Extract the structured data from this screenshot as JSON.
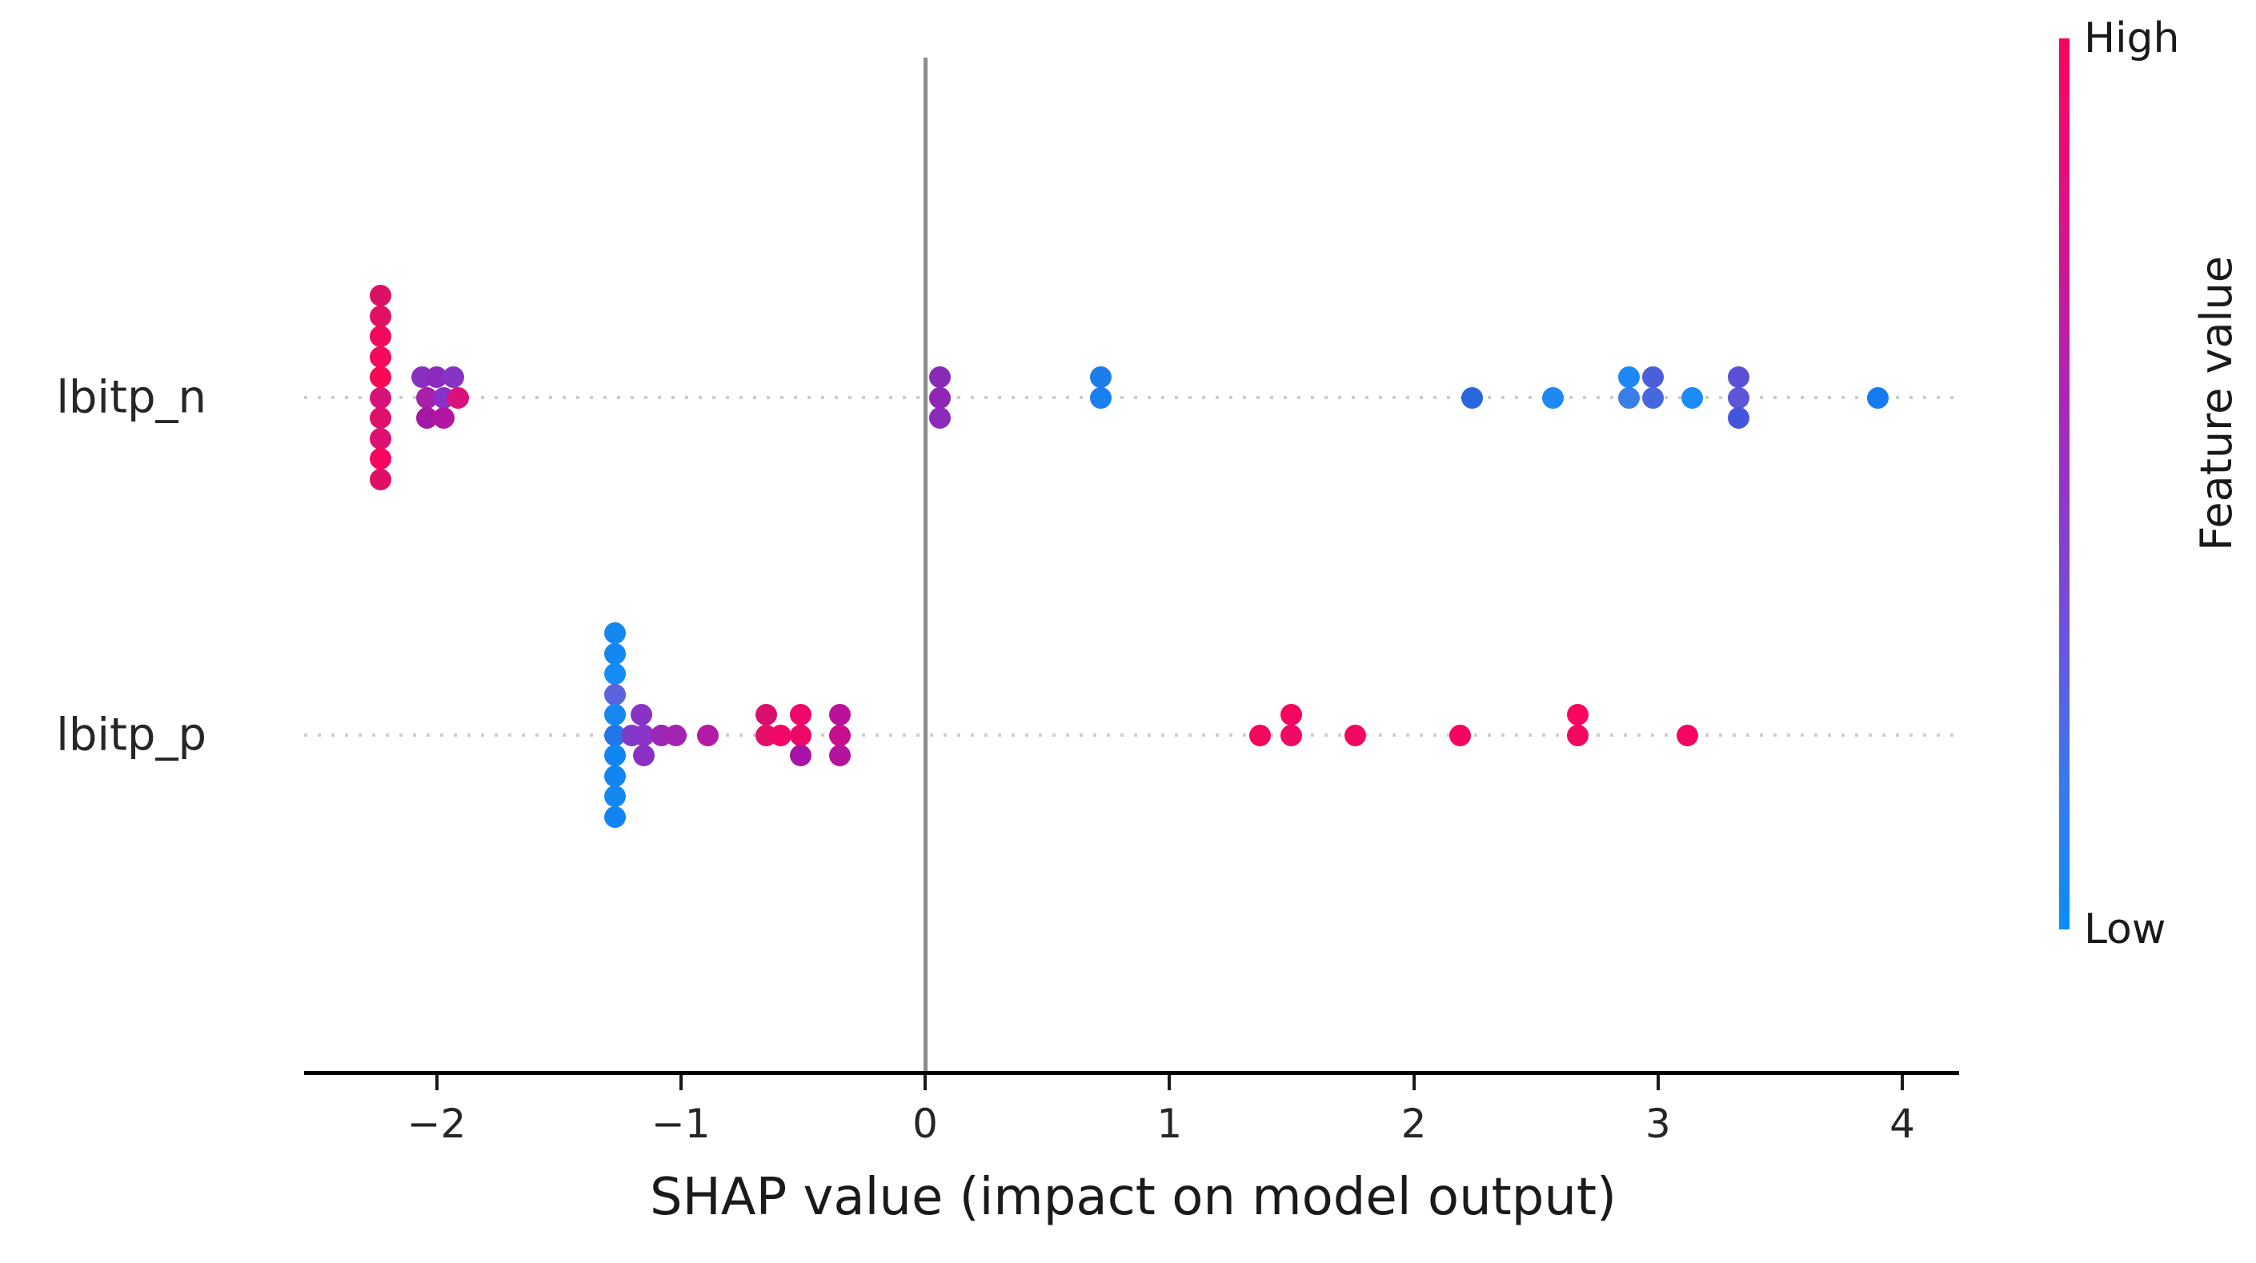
{
  "chart_data": {
    "type": "scatter",
    "variant": "shap-beeswarm-summary",
    "title": "",
    "xlabel": "SHAP value (impact on model output)",
    "ylabel": "",
    "x_ticks": [
      "−2",
      "−1",
      "0",
      "1",
      "2",
      "3",
      "4"
    ],
    "x_tick_values": [
      -2,
      -1,
      0,
      1,
      2,
      3,
      4
    ],
    "xlim": [
      -2.54,
      4.23
    ],
    "grid": "row-dotted-guides",
    "legend_position": "right-colorbar",
    "features": [
      {
        "name": "lbitp_n",
        "points": [
          {
            "x": -2.23,
            "lane": -5,
            "color": "#dc1166"
          },
          {
            "x": -2.23,
            "lane": -4,
            "color": "#e01063"
          },
          {
            "x": -2.23,
            "lane": -3,
            "color": "#f2085c"
          },
          {
            "x": -2.23,
            "lane": -2,
            "color": "#f40a5a"
          },
          {
            "x": -2.23,
            "lane": -1,
            "color": "#fa0755"
          },
          {
            "x": -2.23,
            "lane": 0,
            "color": "#d9127b"
          },
          {
            "x": -2.23,
            "lane": 1,
            "color": "#e00f6b"
          },
          {
            "x": -2.23,
            "lane": 2,
            "color": "#dc1170"
          },
          {
            "x": -2.23,
            "lane": 3,
            "color": "#f9045e"
          },
          {
            "x": -2.23,
            "lane": 4,
            "color": "#df0f68"
          },
          {
            "x": -2.06,
            "lane": -1,
            "color": "#8b2fc0"
          },
          {
            "x": -2.0,
            "lane": -1,
            "color": "#8b2bbe"
          },
          {
            "x": -1.93,
            "lane": -1,
            "color": "#8833c4"
          },
          {
            "x": -2.04,
            "lane": 0,
            "color": "#a81fa8"
          },
          {
            "x": -1.97,
            "lane": 0,
            "color": "#8b30c8"
          },
          {
            "x": -1.91,
            "lane": 0,
            "color": "#d9127b"
          },
          {
            "x": -2.04,
            "lane": 1,
            "color": "#a517a5"
          },
          {
            "x": -1.97,
            "lane": 1,
            "color": "#b315a0"
          },
          {
            "x": 0.06,
            "lane": -1,
            "color": "#8a2bb8"
          },
          {
            "x": 0.06,
            "lane": 0,
            "color": "#9026b4"
          },
          {
            "x": 0.06,
            "lane": 1,
            "color": "#8c2abc"
          },
          {
            "x": 0.72,
            "lane": -1,
            "color": "#1d7deb"
          },
          {
            "x": 0.72,
            "lane": 0,
            "color": "#1a7ff0"
          },
          {
            "x": 2.24,
            "lane": 0,
            "color": "#2a66dd"
          },
          {
            "x": 2.57,
            "lane": 0,
            "color": "#1e88f5"
          },
          {
            "x": 2.88,
            "lane": -1,
            "color": "#1e88f7"
          },
          {
            "x": 2.88,
            "lane": 0,
            "color": "#3a7fe8"
          },
          {
            "x": 2.98,
            "lane": -1,
            "color": "#4a5fd8"
          },
          {
            "x": 2.98,
            "lane": 0,
            "color": "#4667e0"
          },
          {
            "x": 3.14,
            "lane": 0,
            "color": "#1c8cf5"
          },
          {
            "x": 3.33,
            "lane": -1,
            "color": "#5a50d5"
          },
          {
            "x": 3.33,
            "lane": 0,
            "color": "#5f55d8"
          },
          {
            "x": 3.33,
            "lane": 1,
            "color": "#4455dd"
          },
          {
            "x": 3.9,
            "lane": 0,
            "color": "#157bf0"
          }
        ]
      },
      {
        "name": "lbitp_p",
        "points": [
          {
            "x": -1.27,
            "lane": -5,
            "color": "#1488f0"
          },
          {
            "x": -1.27,
            "lane": -4,
            "color": "#1488f0"
          },
          {
            "x": -1.27,
            "lane": -3,
            "color": "#158cf8"
          },
          {
            "x": -1.27,
            "lane": -2,
            "color": "#5a62de"
          },
          {
            "x": -1.27,
            "lane": -1,
            "color": "#1787f2"
          },
          {
            "x": -1.27,
            "lane": 0,
            "color": "#2277e8"
          },
          {
            "x": -1.27,
            "lane": 1,
            "color": "#1185f2"
          },
          {
            "x": -1.27,
            "lane": 2,
            "color": "#1185f2"
          },
          {
            "x": -1.27,
            "lane": 3,
            "color": "#1488f0"
          },
          {
            "x": -1.27,
            "lane": 4,
            "color": "#1184f4"
          },
          {
            "x": -1.16,
            "lane": -1,
            "color": "#8833c6"
          },
          {
            "x": -1.2,
            "lane": 0,
            "color": "#7f3bc8"
          },
          {
            "x": -1.15,
            "lane": 0,
            "color": "#8a35c8"
          },
          {
            "x": -1.15,
            "lane": 1,
            "color": "#8a30c4"
          },
          {
            "x": -1.08,
            "lane": 0,
            "color": "#9c27b5"
          },
          {
            "x": -1.02,
            "lane": 0,
            "color": "#a324b2"
          },
          {
            "x": -0.89,
            "lane": 0,
            "color": "#b31aa5"
          },
          {
            "x": -0.65,
            "lane": -1,
            "color": "#d8106e"
          },
          {
            "x": -0.65,
            "lane": 0,
            "color": "#e2106a"
          },
          {
            "x": -0.59,
            "lane": 0,
            "color": "#f40766"
          },
          {
            "x": -0.51,
            "lane": -1,
            "color": "#ed0869"
          },
          {
            "x": -0.51,
            "lane": 0,
            "color": "#ed0766"
          },
          {
            "x": -0.51,
            "lane": 1,
            "color": "#a812a8"
          },
          {
            "x": -0.35,
            "lane": -1,
            "color": "#bc0f9a"
          },
          {
            "x": -0.35,
            "lane": 0,
            "color": "#c50f90"
          },
          {
            "x": -0.35,
            "lane": 1,
            "color": "#b5129e"
          },
          {
            "x": 1.37,
            "lane": 0,
            "color": "#f2085e"
          },
          {
            "x": 1.5,
            "lane": -1,
            "color": "#f40560"
          },
          {
            "x": 1.5,
            "lane": 0,
            "color": "#ee0964"
          },
          {
            "x": 1.76,
            "lane": 0,
            "color": "#f20762"
          },
          {
            "x": 2.19,
            "lane": 0,
            "color": "#f50560"
          },
          {
            "x": 2.67,
            "lane": -1,
            "color": "#f90562"
          },
          {
            "x": 2.67,
            "lane": 0,
            "color": "#f2085e"
          },
          {
            "x": 3.12,
            "lane": 0,
            "color": "#f40563"
          }
        ]
      }
    ],
    "colorbar": {
      "high_label": "High",
      "low_label": "Low",
      "title": "Feature value",
      "gradient": [
        "#f8045f",
        "#e01080",
        "#bc1ea8",
        "#9433c8",
        "#6e52dc",
        "#3a78ee",
        "#0b8cf7"
      ]
    },
    "accent_colors": {
      "high": "#f8045f",
      "low": "#0b8cf7",
      "axis": "#000000",
      "zero_line": "#8c8c8c",
      "guide": "#cdcdcd",
      "text": "#262626"
    }
  }
}
